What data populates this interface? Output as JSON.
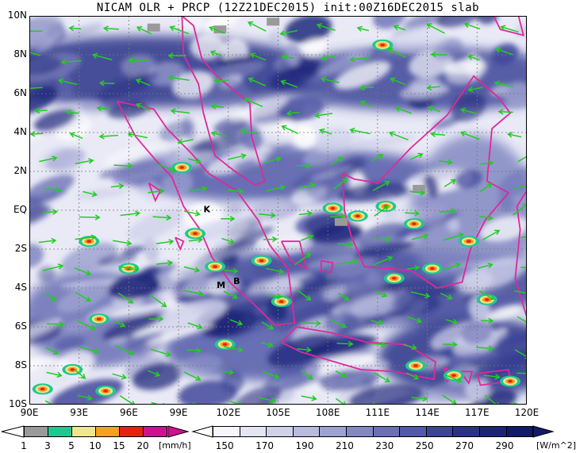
{
  "map": {
    "title": "NICAM OLR + PRCP (12Z21DEC2015) init:00Z16DEC2015 slab",
    "lat_labels": [
      "10N",
      "8N",
      "6N",
      "4N",
      "2N",
      "EQ",
      "2S",
      "4S",
      "6S",
      "8S",
      "10S"
    ],
    "lon_labels": [
      "90E",
      "93E",
      "96E",
      "99E",
      "102E",
      "105E",
      "108E",
      "111E",
      "114E",
      "117E",
      "120E"
    ],
    "lat_range": [
      -10,
      10
    ],
    "lon_range": [
      90,
      120
    ],
    "grid": true,
    "labels": [
      {
        "text": "K",
        "lon": 100.5,
        "lat": -0.1
      },
      {
        "text": "M",
        "lon": 101.3,
        "lat": -4.0
      },
      {
        "text": "B",
        "lon": 102.3,
        "lat": -3.8
      }
    ],
    "colors": {
      "coast": "#e0289a",
      "arrow": "#22cc22",
      "olr_deep": "#1a1f78",
      "olr_mid": "#5a64b8"
    }
  },
  "prcp_colorbar": {
    "labels": [
      "1",
      "3",
      "5",
      "10",
      "15",
      "20"
    ],
    "unit": "[mm/h]",
    "colors": [
      "#9a9a9a",
      "#1ec890",
      "#f0e68c",
      "#f4a020",
      "#e82010",
      "#d01090"
    ]
  },
  "olr_colorbar": {
    "labels": [
      "150",
      "170",
      "190",
      "210",
      "230",
      "250",
      "270",
      "290"
    ],
    "unit": "[W/m^2]",
    "colors": [
      "#f6f6fc",
      "#e4e5f3",
      "#d0d2ea",
      "#b8bbdd",
      "#9ea2d0",
      "#8388c2",
      "#6a70b5",
      "#5259a8",
      "#3c4498",
      "#2a3288",
      "#1c2478",
      "#121a68"
    ]
  }
}
